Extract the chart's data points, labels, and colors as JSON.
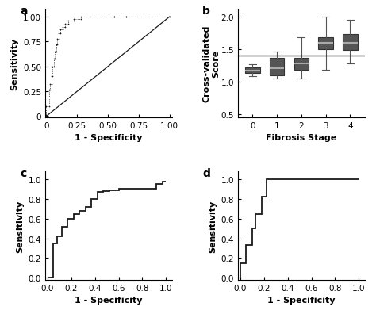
{
  "fig_bg": "#ffffff",
  "panel_bg": "#ffffff",
  "panel_labels": [
    "a",
    "b",
    "c",
    "d"
  ],
  "roc_a": {
    "fpr": [
      0,
      0,
      0.02,
      0.02,
      0.03,
      0.03,
      0.04,
      0.04,
      0.05,
      0.05,
      0.06,
      0.06,
      0.07,
      0.07,
      0.08,
      0.08,
      0.09,
      0.09,
      0.1,
      0.1,
      0.11,
      0.11,
      0.13,
      0.13,
      0.15,
      0.15,
      0.18,
      0.18,
      0.22,
      0.22,
      0.28,
      0.28,
      0.35,
      0.35,
      0.45,
      0.45,
      0.55,
      0.55,
      0.65,
      0.65,
      1.0
    ],
    "tpr": [
      0,
      0.1,
      0.1,
      0.27,
      0.27,
      0.32,
      0.32,
      0.4,
      0.4,
      0.5,
      0.5,
      0.58,
      0.58,
      0.65,
      0.65,
      0.72,
      0.72,
      0.78,
      0.78,
      0.83,
      0.83,
      0.87,
      0.87,
      0.9,
      0.9,
      0.93,
      0.93,
      0.96,
      0.96,
      0.98,
      0.98,
      1.0,
      1.0,
      1.0,
      1.0,
      1.0,
      1.0,
      1.0,
      1.0,
      1.0,
      1.0
    ],
    "diag": [
      0,
      1
    ],
    "xlabel": "1 - Specificity",
    "ylabel": "Sensitivity",
    "xticks": [
      0,
      0.25,
      0.5,
      0.75,
      1.0
    ],
    "xticklabels": [
      "0",
      "0.25",
      "0.50",
      "0.75",
      "1.00"
    ],
    "yticks": [
      0,
      0.25,
      0.5,
      0.75,
      1.0
    ],
    "yticklabels": [
      "0",
      "0.25",
      "0.50",
      "0.75",
      "1.00"
    ],
    "xlim": [
      -0.01,
      1.02
    ],
    "ylim": [
      -0.01,
      1.08
    ]
  },
  "boxplot_b": {
    "xlabel": "Fibrosis Stage",
    "ylabel": "Cross-validated\nScore",
    "xticks": [
      0,
      1,
      2,
      3,
      4
    ],
    "yticks": [
      0.5,
      1.0,
      1.5,
      2.0
    ],
    "xlim": [
      -0.6,
      4.6
    ],
    "ylim": [
      0.45,
      2.12
    ],
    "hline": 1.4,
    "data": {
      "0": {
        "median": 1.17,
        "q1": 1.13,
        "q3": 1.22,
        "whislo": 1.08,
        "whishi": 1.27
      },
      "1": {
        "median": 1.2,
        "q1": 1.1,
        "q3": 1.36,
        "whislo": 1.04,
        "whishi": 1.46
      },
      "2": {
        "median": 1.28,
        "q1": 1.18,
        "q3": 1.36,
        "whislo": 1.04,
        "whishi": 1.68
      },
      "3": {
        "median": 1.6,
        "q1": 1.5,
        "q3": 1.68,
        "whislo": 1.18,
        "whishi": 2.0
      },
      "4": {
        "median": 1.6,
        "q1": 1.48,
        "q3": 1.73,
        "whislo": 1.28,
        "whishi": 1.95
      }
    }
  },
  "roc_c": {
    "fpr": [
      0,
      0,
      0.05,
      0.05,
      0.08,
      0.08,
      0.12,
      0.12,
      0.17,
      0.17,
      0.22,
      0.22,
      0.27,
      0.27,
      0.32,
      0.32,
      0.37,
      0.37,
      0.42,
      0.42,
      0.47,
      0.47,
      0.52,
      0.52,
      0.6,
      0.6,
      0.7,
      0.7,
      0.8,
      0.8,
      0.92,
      0.92,
      0.97,
      0.97,
      1.0
    ],
    "tpr": [
      0,
      0,
      0,
      0.35,
      0.35,
      0.42,
      0.42,
      0.52,
      0.52,
      0.6,
      0.6,
      0.65,
      0.65,
      0.68,
      0.68,
      0.72,
      0.72,
      0.8,
      0.8,
      0.87,
      0.87,
      0.88,
      0.88,
      0.89,
      0.89,
      0.9,
      0.9,
      0.9,
      0.9,
      0.9,
      0.9,
      0.95,
      0.95,
      0.98,
      0.98
    ],
    "xlabel": "1 - Specificity",
    "ylabel": "Sensitivity",
    "xticks": [
      0.0,
      0.2,
      0.4,
      0.6,
      0.8,
      1.0
    ],
    "xticklabels": [
      "0.0",
      "0.2",
      "0.4",
      "0.6",
      "0.8",
      "1.0"
    ],
    "yticks": [
      0.0,
      0.2,
      0.4,
      0.6,
      0.8,
      1.0
    ],
    "yticklabels": [
      "0.0",
      "0.2",
      "0.4",
      "0.6",
      "0.8",
      "1.0"
    ],
    "xlim": [
      -0.02,
      1.05
    ],
    "ylim": [
      -0.02,
      1.08
    ]
  },
  "roc_d": {
    "fpr": [
      0,
      0,
      0.05,
      0.05,
      0.1,
      0.1,
      0.13,
      0.13,
      0.18,
      0.18,
      0.22,
      0.22,
      1.0
    ],
    "tpr": [
      0,
      0.15,
      0.15,
      0.33,
      0.33,
      0.5,
      0.5,
      0.65,
      0.65,
      0.82,
      0.82,
      1.0,
      1.0
    ],
    "xlabel": "1 - Specificity",
    "ylabel": "Sensitivity",
    "xticks": [
      0.0,
      0.2,
      0.4,
      0.6,
      0.8,
      1.0
    ],
    "xticklabels": [
      "0.0",
      "0.2",
      "0.4",
      "0.6",
      "0.8",
      "1.0"
    ],
    "yticks": [
      0.0,
      0.2,
      0.4,
      0.6,
      0.8,
      1.0
    ],
    "yticklabels": [
      "0.0",
      "0.2",
      "0.4",
      "0.6",
      "0.8",
      "1.0"
    ],
    "xlim": [
      -0.02,
      1.05
    ],
    "ylim": [
      -0.02,
      1.08
    ]
  },
  "line_color": "#1a1a1a",
  "box_face_color": "#555555",
  "box_edge_color": "#333333",
  "median_color": "#aaaaaa",
  "whisker_color": "#555555",
  "label_fontsize": 8,
  "tick_fontsize": 7.5,
  "panel_label_fontsize": 10
}
